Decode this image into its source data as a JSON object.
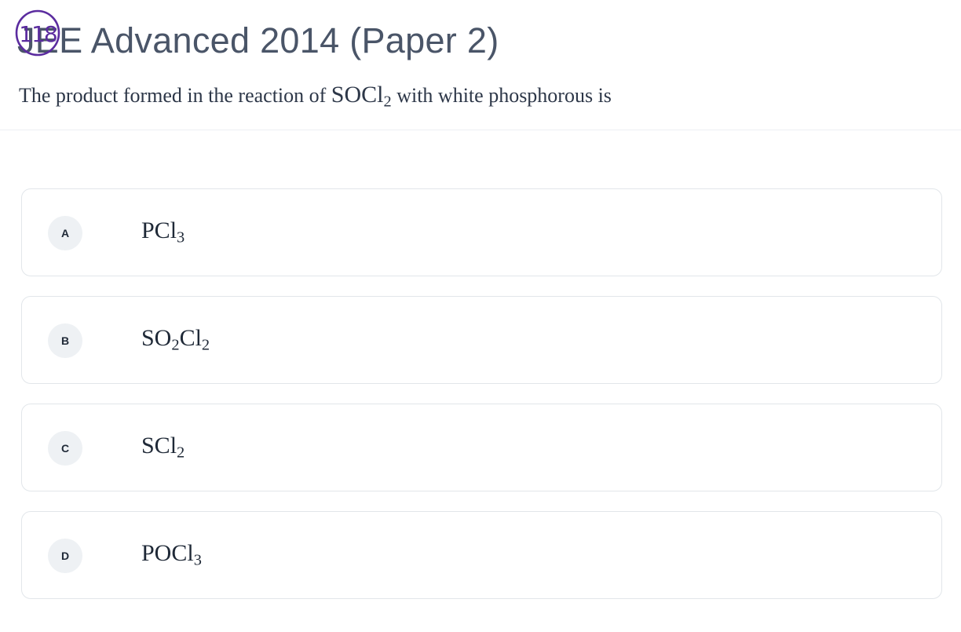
{
  "header": {
    "title": "JEE Advanced 2014 (Paper 2)",
    "annotation_text": "118",
    "question": {
      "prefix": "The product formed in the reaction of ",
      "formula_main": "SOCl",
      "formula_sub": "2",
      "suffix": " with white phosphorous is"
    }
  },
  "options": [
    {
      "letter": "A",
      "parts": [
        {
          "t": "PCl"
        },
        {
          "sub": "3"
        }
      ]
    },
    {
      "letter": "B",
      "parts": [
        {
          "t": "SO"
        },
        {
          "sub": "2"
        },
        {
          "t": "Cl"
        },
        {
          "sub": "2"
        }
      ]
    },
    {
      "letter": "C",
      "parts": [
        {
          "t": "SCl"
        },
        {
          "sub": "2"
        }
      ]
    },
    {
      "letter": "D",
      "parts": [
        {
          "t": "POCl"
        },
        {
          "sub": "3"
        }
      ]
    }
  ],
  "colors": {
    "title": "#4a5568",
    "annotation_ink": "#5b2c9f",
    "badge_bg": "#eef1f4",
    "card_border": "#e2e6ea"
  }
}
